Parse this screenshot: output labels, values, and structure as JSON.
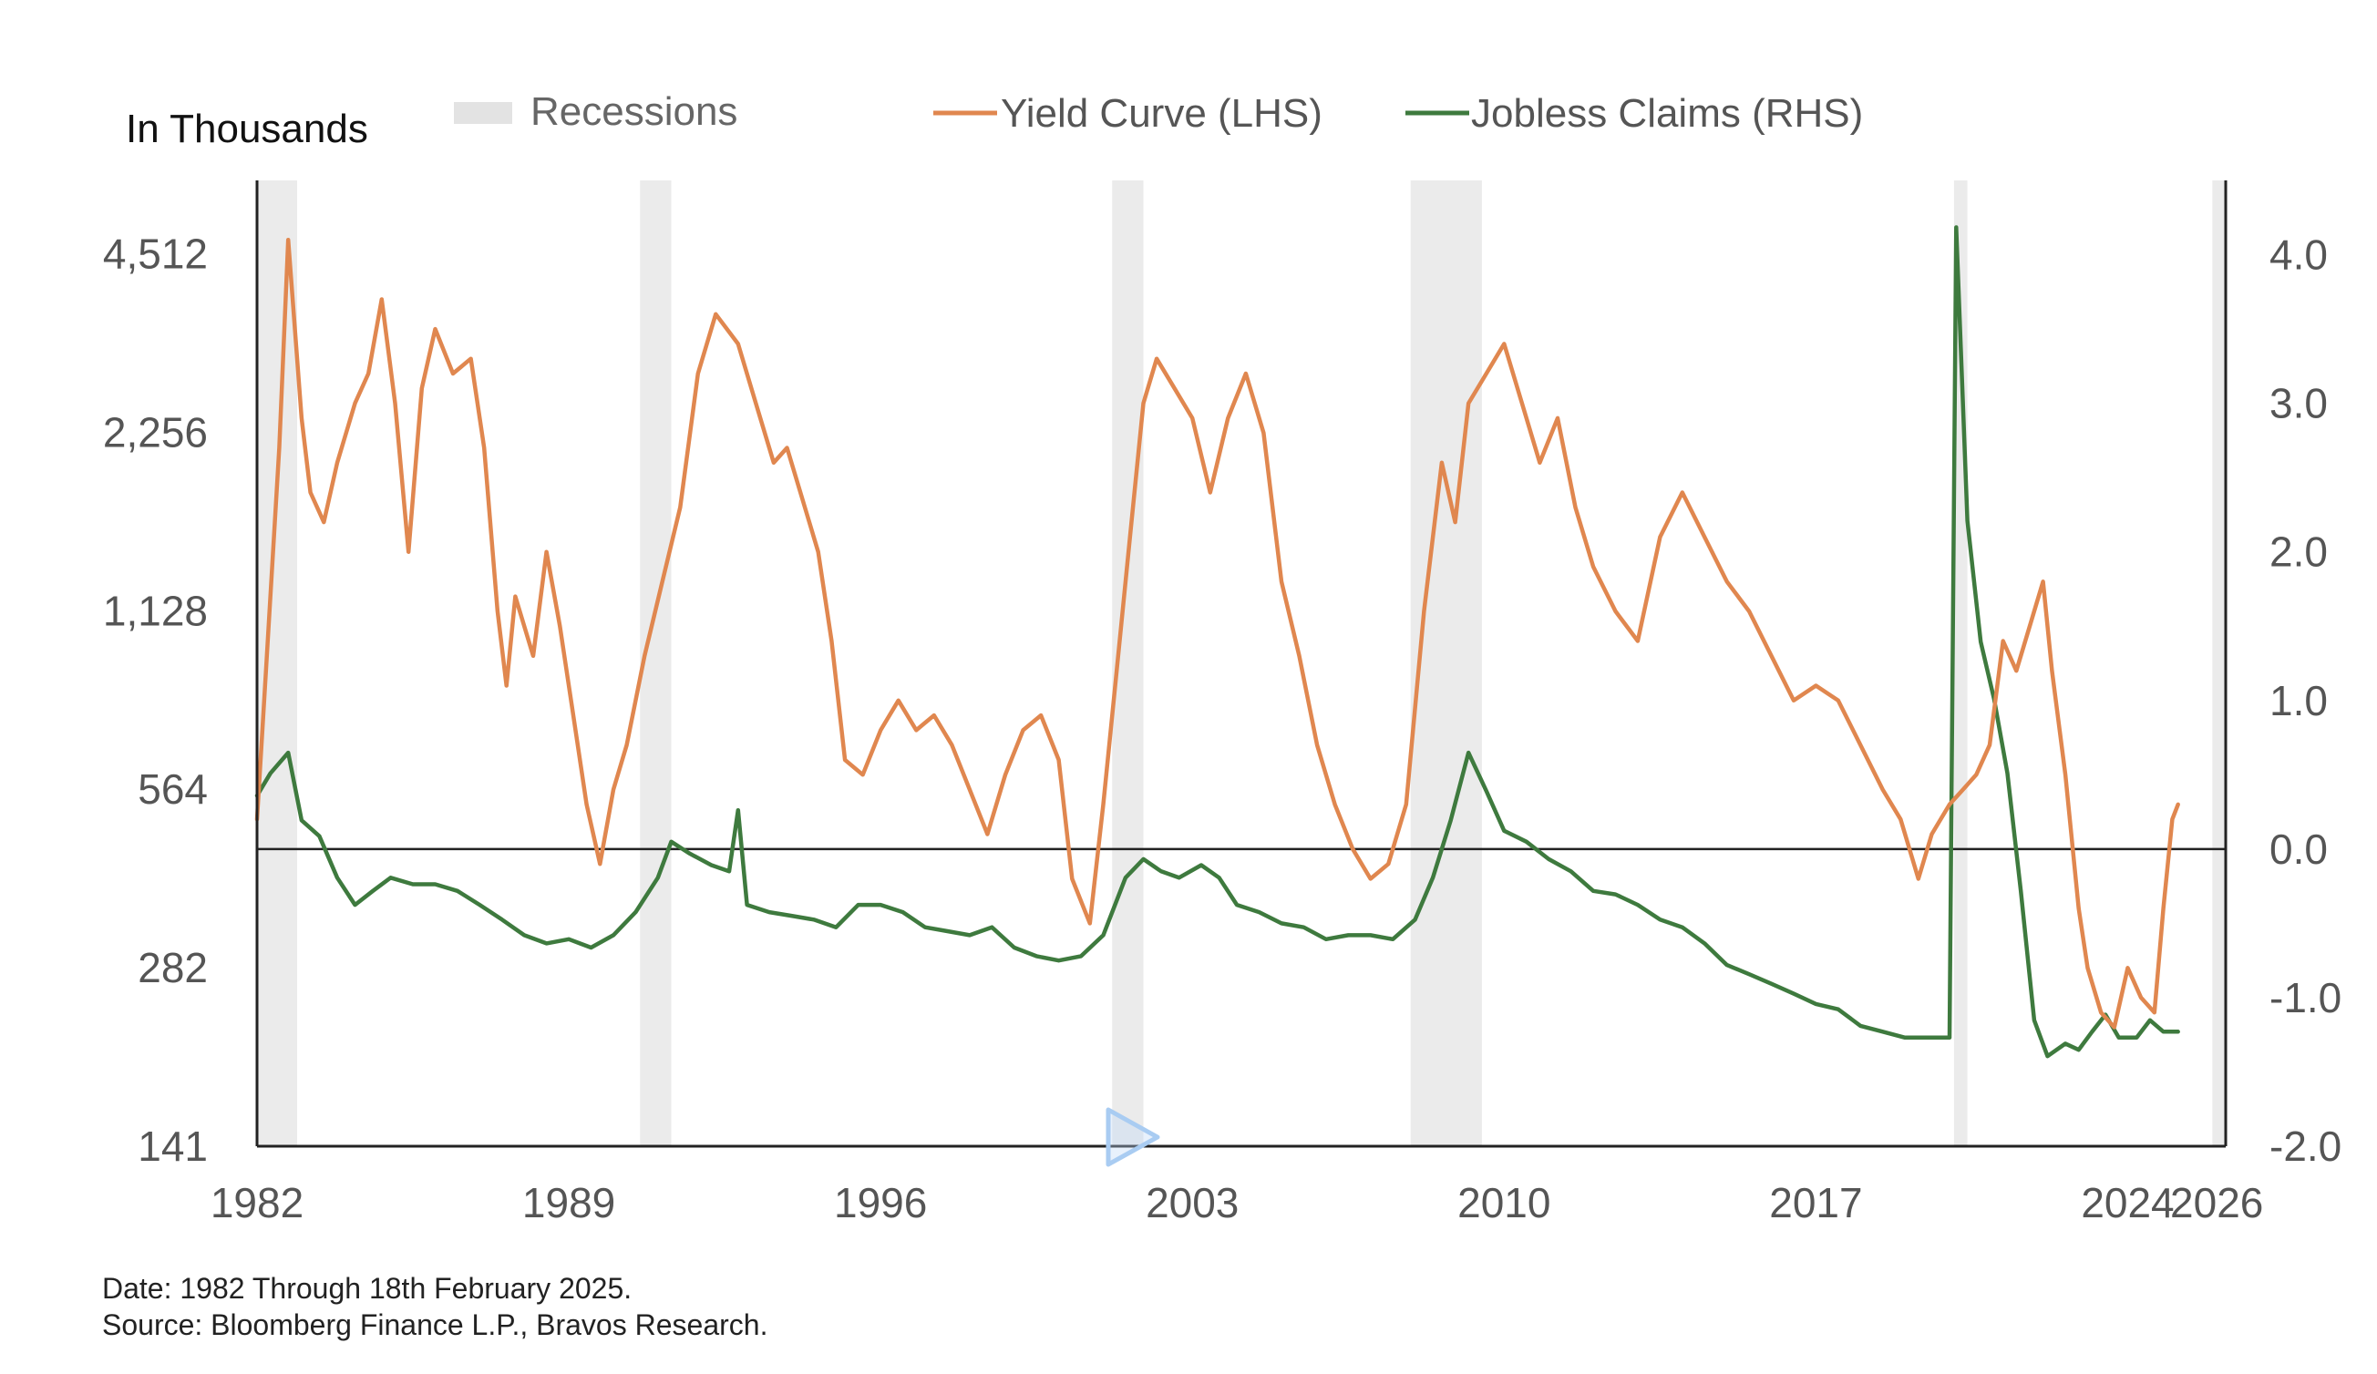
{
  "legend": {
    "unit_label": "In Thousands",
    "recessions": "Recessions",
    "yield_curve": "Yield Curve (LHS)",
    "jobless_claims": "Jobless Claims (RHS)"
  },
  "footnote": {
    "date": "Date: 1982 Through 18th February 2025.",
    "source": "Source: Bloomberg Finance L.P., Bravos Research."
  },
  "colors": {
    "yield_curve": "#E0874F",
    "jobless_claims": "#3E7A3E",
    "recession_band": "#EBEBEB",
    "axis": "#222222",
    "zero_line": "#222222"
  },
  "chart_data": {
    "type": "line",
    "x_range": [
      1982,
      2026.2
    ],
    "x_ticks": [
      "1982",
      "1989",
      "1996",
      "2003",
      "2010",
      "2017",
      "2024",
      "2026"
    ],
    "x_tick_values": [
      1982,
      1989,
      1996,
      2003,
      2010,
      2017,
      2024,
      2026
    ],
    "left_axis": {
      "scale": "log",
      "range": [
        141,
        6000
      ],
      "ticks": [
        "4,512",
        "2,256",
        "1,128",
        "564",
        "282",
        "141"
      ],
      "tick_values": [
        4512,
        2256,
        1128,
        564,
        282,
        141
      ]
    },
    "right_axis": {
      "scale": "linear",
      "range": [
        -2.0,
        4.5
      ],
      "ticks": [
        "4.0",
        "3.0",
        "2.0",
        "1.0",
        "0.0",
        "-1.0",
        "-2.0"
      ],
      "tick_values": [
        4.0,
        3.0,
        2.0,
        1.0,
        0.0,
        -1.0,
        -2.0
      ]
    },
    "zero_line": 0.0,
    "recessions": [
      [
        1982.0,
        1982.9
      ],
      [
        1990.6,
        1991.3
      ],
      [
        2001.2,
        2001.9
      ],
      [
        2007.9,
        2009.5
      ],
      [
        2020.1,
        2020.4
      ],
      [
        2025.9,
        2026.2
      ]
    ],
    "series": [
      {
        "name": "Yield Curve (LHS)",
        "axis": "right",
        "points": [
          [
            1982.0,
            0.2
          ],
          [
            1982.2,
            1.2
          ],
          [
            1982.5,
            2.7
          ],
          [
            1982.7,
            4.1
          ],
          [
            1983.0,
            2.9
          ],
          [
            1983.2,
            2.4
          ],
          [
            1983.5,
            2.2
          ],
          [
            1983.8,
            2.6
          ],
          [
            1984.2,
            3.0
          ],
          [
            1984.5,
            3.2
          ],
          [
            1984.8,
            3.7
          ],
          [
            1985.1,
            3.0
          ],
          [
            1985.4,
            2.0
          ],
          [
            1985.7,
            3.1
          ],
          [
            1986.0,
            3.5
          ],
          [
            1986.4,
            3.2
          ],
          [
            1986.8,
            3.3
          ],
          [
            1987.1,
            2.7
          ],
          [
            1987.4,
            1.6
          ],
          [
            1987.6,
            1.1
          ],
          [
            1987.8,
            1.7
          ],
          [
            1988.2,
            1.3
          ],
          [
            1988.5,
            2.0
          ],
          [
            1988.8,
            1.5
          ],
          [
            1989.1,
            0.9
          ],
          [
            1989.4,
            0.3
          ],
          [
            1989.7,
            -0.1
          ],
          [
            1990.0,
            0.4
          ],
          [
            1990.3,
            0.7
          ],
          [
            1990.7,
            1.3
          ],
          [
            1991.1,
            1.8
          ],
          [
            1991.5,
            2.3
          ],
          [
            1991.9,
            3.2
          ],
          [
            1992.3,
            3.6
          ],
          [
            1992.8,
            3.4
          ],
          [
            1993.2,
            3.0
          ],
          [
            1993.6,
            2.6
          ],
          [
            1993.9,
            2.7
          ],
          [
            1994.2,
            2.4
          ],
          [
            1994.6,
            2.0
          ],
          [
            1994.9,
            1.4
          ],
          [
            1995.2,
            0.6
          ],
          [
            1995.6,
            0.5
          ],
          [
            1996.0,
            0.8
          ],
          [
            1996.4,
            1.0
          ],
          [
            1996.8,
            0.8
          ],
          [
            1997.2,
            0.9
          ],
          [
            1997.6,
            0.7
          ],
          [
            1998.0,
            0.4
          ],
          [
            1998.4,
            0.1
          ],
          [
            1998.8,
            0.5
          ],
          [
            1999.2,
            0.8
          ],
          [
            1999.6,
            0.9
          ],
          [
            2000.0,
            0.6
          ],
          [
            2000.3,
            -0.2
          ],
          [
            2000.7,
            -0.5
          ],
          [
            2001.0,
            0.3
          ],
          [
            2001.3,
            1.2
          ],
          [
            2001.6,
            2.1
          ],
          [
            2001.9,
            3.0
          ],
          [
            2002.2,
            3.3
          ],
          [
            2002.6,
            3.1
          ],
          [
            2003.0,
            2.9
          ],
          [
            2003.4,
            2.4
          ],
          [
            2003.8,
            2.9
          ],
          [
            2004.2,
            3.2
          ],
          [
            2004.6,
            2.8
          ],
          [
            2005.0,
            1.8
          ],
          [
            2005.4,
            1.3
          ],
          [
            2005.8,
            0.7
          ],
          [
            2006.2,
            0.3
          ],
          [
            2006.6,
            0.0
          ],
          [
            2007.0,
            -0.2
          ],
          [
            2007.4,
            -0.1
          ],
          [
            2007.8,
            0.3
          ],
          [
            2008.2,
            1.6
          ],
          [
            2008.6,
            2.6
          ],
          [
            2008.9,
            2.2
          ],
          [
            2009.2,
            3.0
          ],
          [
            2009.6,
            3.2
          ],
          [
            2010.0,
            3.4
          ],
          [
            2010.4,
            3.0
          ],
          [
            2010.8,
            2.6
          ],
          [
            2011.2,
            2.9
          ],
          [
            2011.6,
            2.3
          ],
          [
            2012.0,
            1.9
          ],
          [
            2012.5,
            1.6
          ],
          [
            2013.0,
            1.4
          ],
          [
            2013.5,
            2.1
          ],
          [
            2014.0,
            2.4
          ],
          [
            2014.5,
            2.1
          ],
          [
            2015.0,
            1.8
          ],
          [
            2015.5,
            1.6
          ],
          [
            2016.0,
            1.3
          ],
          [
            2016.5,
            1.0
          ],
          [
            2017.0,
            1.1
          ],
          [
            2017.5,
            1.0
          ],
          [
            2018.0,
            0.7
          ],
          [
            2018.5,
            0.4
          ],
          [
            2018.9,
            0.2
          ],
          [
            2019.3,
            -0.2
          ],
          [
            2019.6,
            0.1
          ],
          [
            2020.0,
            0.3
          ],
          [
            2020.3,
            0.4
          ],
          [
            2020.6,
            0.5
          ],
          [
            2020.9,
            0.7
          ],
          [
            2021.2,
            1.4
          ],
          [
            2021.5,
            1.2
          ],
          [
            2021.8,
            1.5
          ],
          [
            2022.1,
            1.8
          ],
          [
            2022.3,
            1.2
          ],
          [
            2022.6,
            0.5
          ],
          [
            2022.9,
            -0.4
          ],
          [
            2023.1,
            -0.8
          ],
          [
            2023.4,
            -1.1
          ],
          [
            2023.7,
            -1.2
          ],
          [
            2024.0,
            -0.8
          ],
          [
            2024.3,
            -1.0
          ],
          [
            2024.6,
            -1.1
          ],
          [
            2024.8,
            -0.4
          ],
          [
            2025.0,
            0.2
          ],
          [
            2025.13,
            0.3
          ]
        ]
      },
      {
        "name": "Jobless Claims (RHS)",
        "axis": "left",
        "points": [
          [
            1982.0,
            550
          ],
          [
            1982.3,
            600
          ],
          [
            1982.7,
            650
          ],
          [
            1983.0,
            500
          ],
          [
            1983.4,
            470
          ],
          [
            1983.8,
            400
          ],
          [
            1984.2,
            360
          ],
          [
            1984.6,
            380
          ],
          [
            1985.0,
            400
          ],
          [
            1985.5,
            390
          ],
          [
            1986.0,
            390
          ],
          [
            1986.5,
            380
          ],
          [
            1987.0,
            360
          ],
          [
            1987.5,
            340
          ],
          [
            1988.0,
            320
          ],
          [
            1988.5,
            310
          ],
          [
            1989.0,
            315
          ],
          [
            1989.5,
            305
          ],
          [
            1990.0,
            320
          ],
          [
            1990.5,
            350
          ],
          [
            1991.0,
            400
          ],
          [
            1991.3,
            460
          ],
          [
            1991.7,
            440
          ],
          [
            1992.2,
            420
          ],
          [
            1992.6,
            410
          ],
          [
            1992.8,
            520
          ],
          [
            1993.0,
            360
          ],
          [
            1993.5,
            350
          ],
          [
            1994.0,
            345
          ],
          [
            1994.5,
            340
          ],
          [
            1995.0,
            330
          ],
          [
            1995.5,
            360
          ],
          [
            1996.0,
            360
          ],
          [
            1996.5,
            350
          ],
          [
            1997.0,
            330
          ],
          [
            1997.5,
            325
          ],
          [
            1998.0,
            320
          ],
          [
            1998.5,
            330
          ],
          [
            1999.0,
            305
          ],
          [
            1999.5,
            295
          ],
          [
            2000.0,
            290
          ],
          [
            2000.5,
            295
          ],
          [
            2001.0,
            320
          ],
          [
            2001.5,
            400
          ],
          [
            2001.9,
            430
          ],
          [
            2002.3,
            410
          ],
          [
            2002.7,
            400
          ],
          [
            2003.2,
            420
          ],
          [
            2003.6,
            400
          ],
          [
            2004.0,
            360
          ],
          [
            2004.5,
            350
          ],
          [
            2005.0,
            335
          ],
          [
            2005.5,
            330
          ],
          [
            2006.0,
            315
          ],
          [
            2006.5,
            320
          ],
          [
            2007.0,
            320
          ],
          [
            2007.5,
            315
          ],
          [
            2008.0,
            340
          ],
          [
            2008.4,
            400
          ],
          [
            2008.8,
            500
          ],
          [
            2009.2,
            650
          ],
          [
            2009.6,
            560
          ],
          [
            2010.0,
            480
          ],
          [
            2010.5,
            460
          ],
          [
            2011.0,
            430
          ],
          [
            2011.5,
            410
          ],
          [
            2012.0,
            380
          ],
          [
            2012.5,
            375
          ],
          [
            2013.0,
            360
          ],
          [
            2013.5,
            340
          ],
          [
            2014.0,
            330
          ],
          [
            2014.5,
            310
          ],
          [
            2015.0,
            285
          ],
          [
            2015.5,
            275
          ],
          [
            2016.0,
            265
          ],
          [
            2016.5,
            255
          ],
          [
            2017.0,
            245
          ],
          [
            2017.5,
            240
          ],
          [
            2018.0,
            225
          ],
          [
            2018.5,
            220
          ],
          [
            2019.0,
            215
          ],
          [
            2019.5,
            215
          ],
          [
            2020.0,
            215
          ],
          [
            2020.15,
            5000
          ],
          [
            2020.4,
            1600
          ],
          [
            2020.7,
            1000
          ],
          [
            2021.0,
            800
          ],
          [
            2021.3,
            600
          ],
          [
            2021.6,
            380
          ],
          [
            2021.9,
            230
          ],
          [
            2022.2,
            200
          ],
          [
            2022.6,
            210
          ],
          [
            2022.9,
            205
          ],
          [
            2023.2,
            220
          ],
          [
            2023.5,
            235
          ],
          [
            2023.8,
            215
          ],
          [
            2024.2,
            215
          ],
          [
            2024.5,
            230
          ],
          [
            2024.8,
            220
          ],
          [
            2025.13,
            220
          ]
        ]
      }
    ]
  }
}
